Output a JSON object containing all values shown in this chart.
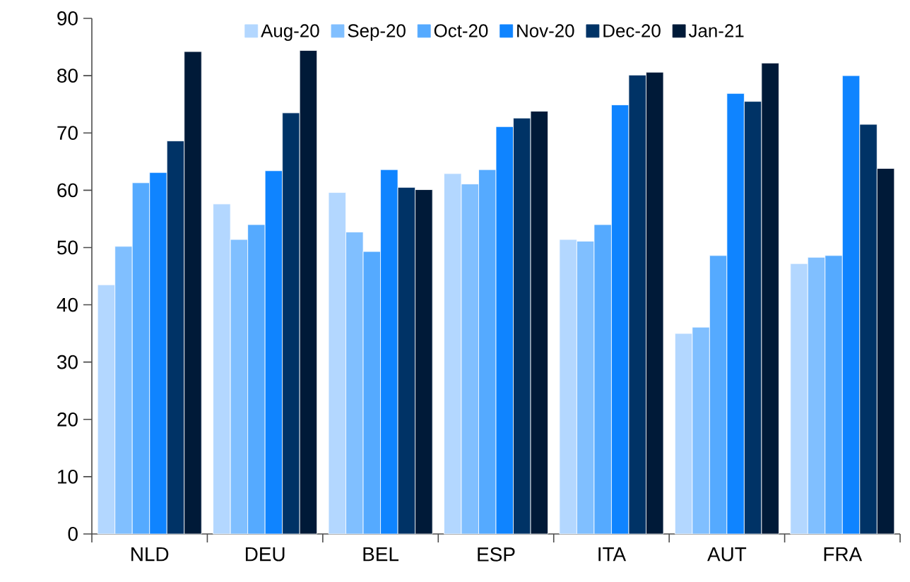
{
  "chart_data": {
    "type": "bar",
    "categories": [
      "NLD",
      "DEU",
      "BEL",
      "ESP",
      "ITA",
      "AUT",
      "FRA"
    ],
    "series": [
      {
        "name": "Aug-20",
        "color": "#b3d7ff",
        "values": [
          43.5,
          57.6,
          59.6,
          62.9,
          51.4,
          35.0,
          47.2
        ]
      },
      {
        "name": "Sep-20",
        "color": "#80bfff",
        "values": [
          50.2,
          51.4,
          52.7,
          61.1,
          51.1,
          36.1,
          48.3
        ]
      },
      {
        "name": "Oct-20",
        "color": "#55aaff",
        "values": [
          61.3,
          54.0,
          49.3,
          63.6,
          54.0,
          48.6,
          48.6
        ]
      },
      {
        "name": "Nov-20",
        "color": "#0f84ff",
        "values": [
          63.1,
          63.4,
          63.6,
          71.1,
          74.9,
          76.9,
          80.0
        ]
      },
      {
        "name": "Dec-20",
        "color": "#003366",
        "values": [
          68.6,
          73.5,
          60.5,
          72.6,
          80.1,
          75.5,
          71.5
        ]
      },
      {
        "name": "Jan-21",
        "color": "#001a38",
        "values": [
          84.2,
          84.4,
          60.1,
          73.8,
          80.6,
          82.2,
          63.8
        ]
      }
    ],
    "ylim": [
      0,
      90
    ],
    "yticks": [
      0,
      10,
      20,
      30,
      40,
      50,
      60,
      70,
      80,
      90
    ],
    "grid": false,
    "legend": "top"
  }
}
